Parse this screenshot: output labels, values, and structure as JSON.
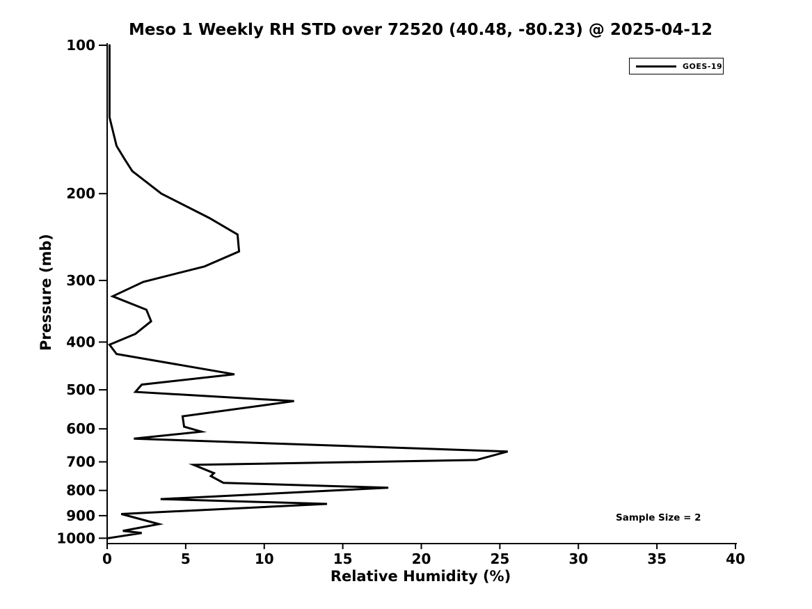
{
  "title": "Meso 1 Weekly RH STD over 72520 (40.48, -80.23) @ 2025-04-12",
  "legend": {
    "label": "GOES-19",
    "line_color": "#000000"
  },
  "annotation": {
    "text": "Sample Size = 2"
  },
  "colors": {
    "line": "#000000",
    "axis": "#000000",
    "text": "#000000",
    "background": "#ffffff"
  },
  "chart_data": {
    "type": "line",
    "title": "Meso 1 Weekly RH STD over 72520 (40.48, -80.23) @ 2025-04-12",
    "xlabel": "Relative Humidity (%)",
    "ylabel": "Pressure (mb)",
    "xlim": [
      0,
      40
    ],
    "ylim": [
      100,
      1000
    ],
    "x_ticks": [
      0,
      5,
      10,
      15,
      20,
      25,
      30,
      35,
      40
    ],
    "y_ticks": [
      100,
      200,
      300,
      400,
      500,
      600,
      700,
      800,
      900,
      1000
    ],
    "y_scale": "log",
    "y_inverted": true,
    "grid": false,
    "legend_position": "upper right",
    "annotations": [
      "Sample Size = 2"
    ],
    "series": [
      {
        "name": "GOES-19",
        "color": "#000000",
        "points_format": [
          "pressure_mb",
          "rh_std_percent"
        ],
        "points": [
          [
            100,
            0.15
          ],
          [
            140,
            0.15
          ],
          [
            160,
            0.6
          ],
          [
            170,
            1.1
          ],
          [
            180,
            1.6
          ],
          [
            200,
            3.45
          ],
          [
            224,
            6.5
          ],
          [
            242,
            8.3
          ],
          [
            262,
            8.4
          ],
          [
            281,
            6.2
          ],
          [
            302,
            2.3
          ],
          [
            323,
            0.35
          ],
          [
            344,
            2.5
          ],
          [
            363,
            2.8
          ],
          [
            385,
            1.8
          ],
          [
            405,
            0.15
          ],
          [
            423,
            0.6
          ],
          [
            465,
            8.1
          ],
          [
            488,
            2.2
          ],
          [
            505,
            1.8
          ],
          [
            527,
            11.9
          ],
          [
            566,
            4.8
          ],
          [
            594,
            4.9
          ],
          [
            608,
            6.0
          ],
          [
            628,
            1.7
          ],
          [
            667,
            25.5
          ],
          [
            694,
            23.5
          ],
          [
            710,
            5.5
          ],
          [
            738,
            6.8
          ],
          [
            748,
            6.6
          ],
          [
            772,
            7.4
          ],
          [
            790,
            17.9
          ],
          [
            833,
            3.4
          ],
          [
            852,
            14.0
          ],
          [
            893,
            0.9
          ],
          [
            936,
            3.3
          ],
          [
            966,
            1.0
          ],
          [
            976,
            2.2
          ],
          [
            1000,
            0.05
          ]
        ]
      }
    ]
  }
}
